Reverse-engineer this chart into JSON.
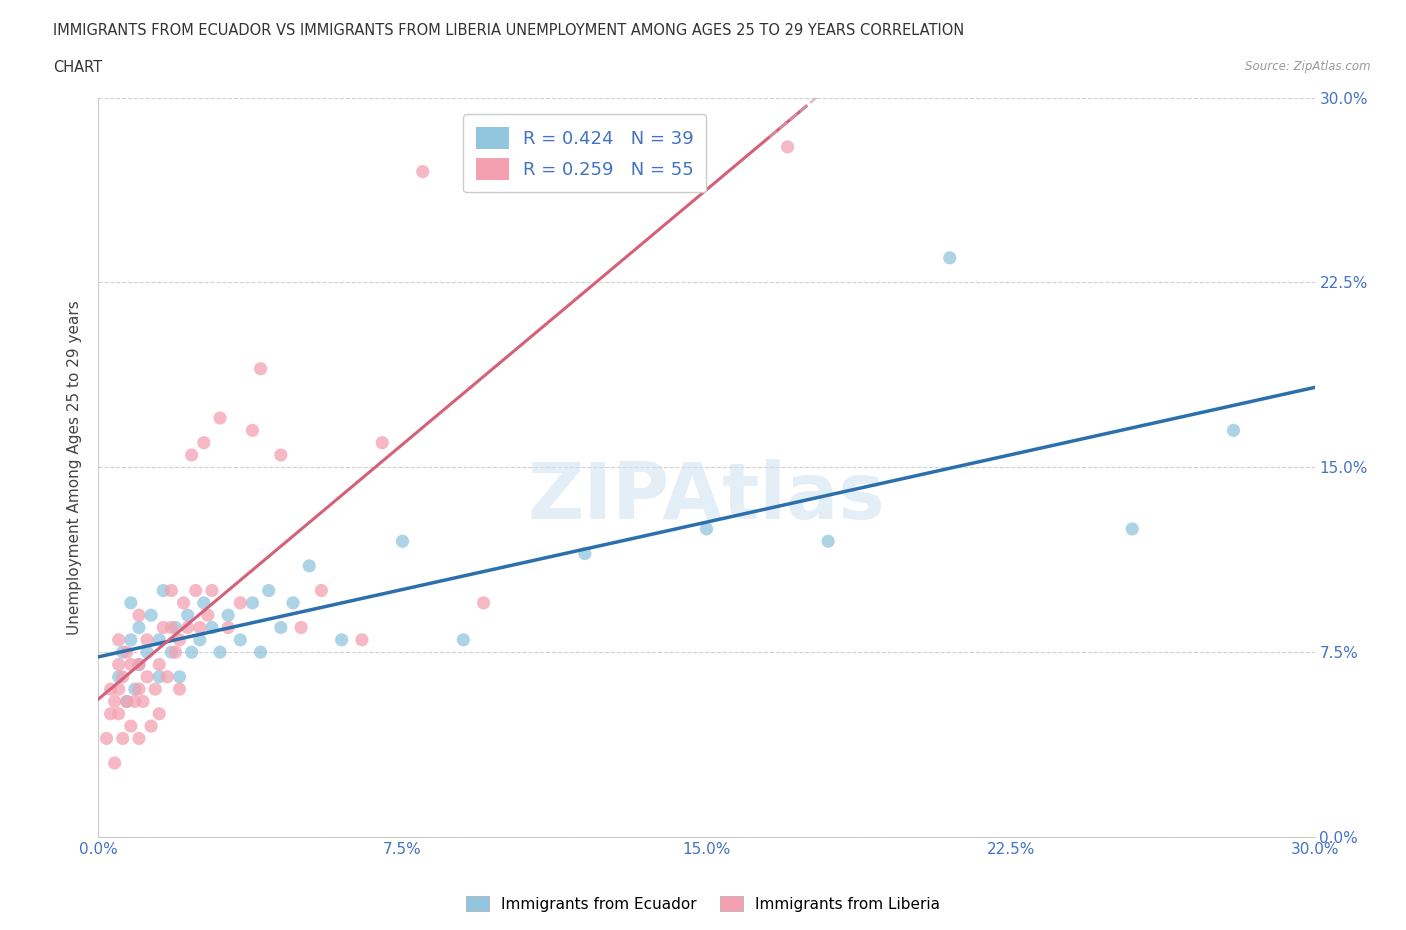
{
  "title_line1": "IMMIGRANTS FROM ECUADOR VS IMMIGRANTS FROM LIBERIA UNEMPLOYMENT AMONG AGES 25 TO 29 YEARS CORRELATION",
  "title_line2": "CHART",
  "source": "Source: ZipAtlas.com",
  "ylabel": "Unemployment Among Ages 25 to 29 years",
  "xlim": [
    0.0,
    0.3
  ],
  "ylim": [
    0.0,
    0.3
  ],
  "tick_vals": [
    0.0,
    0.075,
    0.15,
    0.225,
    0.3
  ],
  "tick_labels": [
    "0.0%",
    "7.5%",
    "15.0%",
    "22.5%",
    "30.0%"
  ],
  "ecuador_color": "#92c5de",
  "liberia_color": "#f4a0b0",
  "ecuador_line_color": "#2c6fad",
  "liberia_line_color": "#d4607a",
  "liberia_dash_color": "#d4a0b0",
  "watermark": "ZIPAtlas",
  "legend_ecuador": "R = 0.424   N = 39",
  "legend_liberia": "R = 0.259   N = 55",
  "bottom_legend_ecuador": "Immigrants from Ecuador",
  "bottom_legend_liberia": "Immigrants from Liberia",
  "ecuador_x": [
    0.005,
    0.006,
    0.007,
    0.008,
    0.008,
    0.009,
    0.01,
    0.01,
    0.012,
    0.013,
    0.015,
    0.015,
    0.016,
    0.018,
    0.019,
    0.02,
    0.022,
    0.023,
    0.025,
    0.026,
    0.028,
    0.03,
    0.032,
    0.035,
    0.038,
    0.04,
    0.042,
    0.045,
    0.048,
    0.052,
    0.06,
    0.075,
    0.09,
    0.12,
    0.15,
    0.18,
    0.21,
    0.255,
    0.28
  ],
  "ecuador_y": [
    0.065,
    0.075,
    0.055,
    0.08,
    0.095,
    0.06,
    0.07,
    0.085,
    0.075,
    0.09,
    0.065,
    0.08,
    0.1,
    0.075,
    0.085,
    0.065,
    0.09,
    0.075,
    0.08,
    0.095,
    0.085,
    0.075,
    0.09,
    0.08,
    0.095,
    0.075,
    0.1,
    0.085,
    0.095,
    0.11,
    0.08,
    0.12,
    0.08,
    0.115,
    0.125,
    0.12,
    0.235,
    0.125,
    0.165
  ],
  "liberia_x": [
    0.002,
    0.003,
    0.003,
    0.004,
    0.004,
    0.005,
    0.005,
    0.005,
    0.005,
    0.006,
    0.006,
    0.007,
    0.007,
    0.008,
    0.008,
    0.009,
    0.01,
    0.01,
    0.01,
    0.01,
    0.011,
    0.012,
    0.012,
    0.013,
    0.014,
    0.015,
    0.015,
    0.016,
    0.017,
    0.018,
    0.018,
    0.019,
    0.02,
    0.02,
    0.021,
    0.022,
    0.023,
    0.024,
    0.025,
    0.026,
    0.027,
    0.028,
    0.03,
    0.032,
    0.035,
    0.038,
    0.04,
    0.045,
    0.05,
    0.055,
    0.065,
    0.07,
    0.08,
    0.095,
    0.17
  ],
  "liberia_y": [
    0.04,
    0.05,
    0.06,
    0.03,
    0.055,
    0.05,
    0.06,
    0.07,
    0.08,
    0.04,
    0.065,
    0.055,
    0.075,
    0.045,
    0.07,
    0.055,
    0.04,
    0.06,
    0.07,
    0.09,
    0.055,
    0.065,
    0.08,
    0.045,
    0.06,
    0.05,
    0.07,
    0.085,
    0.065,
    0.085,
    0.1,
    0.075,
    0.06,
    0.08,
    0.095,
    0.085,
    0.155,
    0.1,
    0.085,
    0.16,
    0.09,
    0.1,
    0.17,
    0.085,
    0.095,
    0.165,
    0.19,
    0.155,
    0.085,
    0.1,
    0.08,
    0.16,
    0.27,
    0.095,
    0.28
  ]
}
